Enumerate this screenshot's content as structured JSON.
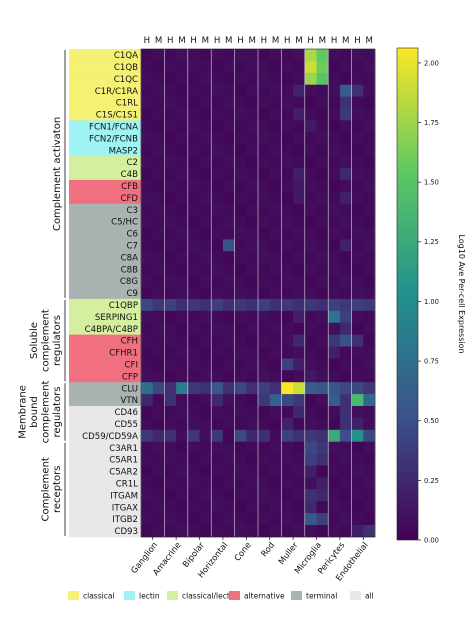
{
  "chart_data": {
    "type": "heatmap",
    "colorbar": {
      "label": "Log10 Ave Per-cell Expression",
      "range": [
        0,
        2.0625
      ],
      "ticks": [
        "0.00",
        "0.25",
        "0.50",
        "0.75",
        "1.00",
        "1.25",
        "1.50",
        "1.75",
        "2.00"
      ],
      "colors": [
        "#440154",
        "#3b528b",
        "#21918c",
        "#5ec962",
        "#fde725"
      ]
    },
    "column_species": [
      "H",
      "M"
    ],
    "cell_types": [
      "Ganglion",
      "Amacrine",
      "Bipolar",
      "Horizontal",
      "Cone",
      "Rod",
      "Muller",
      "Microglia",
      "Pericytes",
      "Endothelial"
    ],
    "genes": [
      "C1QA",
      "C1QB",
      "C1QC",
      "C1R/C1RA",
      "C1RL",
      "C1S/C1S1",
      "FCN1/FCNA",
      "FCN2/FCNB",
      "MASP2",
      "C2",
      "C4B",
      "CFB",
      "CFD",
      "C3",
      "C5/HC",
      "C6",
      "C7",
      "C8A",
      "C8B",
      "C8G",
      "C9",
      "C1QBP",
      "SERPING1",
      "C4BPA/C4BP",
      "CFH",
      "CFHR1",
      "CFI",
      "CFP",
      "CLU",
      "VTN",
      "CD46",
      "CD55",
      "CD59/CD59A",
      "C3AR1",
      "C5AR1",
      "C5AR2",
      "CR1L",
      "ITGAM",
      "ITGAX",
      "ITGB2",
      "CD93"
    ],
    "gene_category": [
      "classical",
      "classical",
      "classical",
      "classical",
      "classical",
      "classical",
      "lectin",
      "lectin",
      "lectin",
      "classical/lectin",
      "classical/lectin",
      "alternative",
      "alternative",
      "terminal",
      "terminal",
      "terminal",
      "terminal",
      "terminal",
      "terminal",
      "terminal",
      "terminal",
      "classical/lectin",
      "classical/lectin",
      "classical/lectin",
      "alternative",
      "alternative",
      "alternative",
      "alternative",
      "terminal",
      "terminal",
      "all",
      "all",
      "all",
      "all",
      "all",
      "all",
      "all",
      "all",
      "all",
      "all",
      "all"
    ],
    "groups": [
      {
        "lines": [
          "Complement activaton"
        ],
        "from": 0,
        "to": 20
      },
      {
        "lines": [
          "Soluble",
          "complement",
          "regulators"
        ],
        "from": 21,
        "to": 27
      },
      {
        "lines": [
          "Membrane",
          "bound",
          "complement",
          "regulators"
        ],
        "from": 28,
        "to": 32
      },
      {
        "lines": [
          "Complement",
          "receptors"
        ],
        "from": 33,
        "to": 40
      }
    ],
    "legend": [
      {
        "label": "classical",
        "color": "#f5f174"
      },
      {
        "label": "lectin",
        "color": "#9ff3f4"
      },
      {
        "label": "classical/lectin",
        "color": "#d5ef9f"
      },
      {
        "label": "alternative",
        "color": "#f07080"
      },
      {
        "label": "terminal",
        "color": "#a9b3b1"
      },
      {
        "label": "all",
        "color": "#e8e8e8"
      }
    ],
    "highlights": [
      {
        "gene": "C1QA",
        "col": 14,
        "value": 1.8
      },
      {
        "gene": "C1QA",
        "col": 15,
        "value": 1.55
      },
      {
        "gene": "C1QB",
        "col": 14,
        "value": 1.9
      },
      {
        "gene": "C1QB",
        "col": 15,
        "value": 1.6
      },
      {
        "gene": "C1QC",
        "col": 14,
        "value": 1.75
      },
      {
        "gene": "C1QC",
        "col": 15,
        "value": 1.5
      },
      {
        "gene": "C1R/C1RA",
        "col": 17,
        "value": 0.6
      },
      {
        "gene": "C1R/C1RA",
        "col": 13,
        "value": 0.22
      },
      {
        "gene": "C1R/C1RA",
        "col": 18,
        "value": 0.3
      },
      {
        "gene": "C1RL",
        "col": 17,
        "value": 0.3
      },
      {
        "gene": "C1S/C1S1",
        "col": 17,
        "value": 0.35
      },
      {
        "gene": "C1S/C1S1",
        "col": 13,
        "value": 0.2
      },
      {
        "gene": "FCN1/FCNA",
        "col": 14,
        "value": 0.15
      },
      {
        "gene": "C4B",
        "col": 13,
        "value": 0.2
      },
      {
        "gene": "C4B",
        "col": 17,
        "value": 0.25
      },
      {
        "gene": "CFB",
        "col": 13,
        "value": 0.15
      },
      {
        "gene": "CFD",
        "col": 17,
        "value": 0.2
      },
      {
        "gene": "CFD",
        "col": 13,
        "value": 0.15
      },
      {
        "gene": "C7",
        "col": 7,
        "value": 0.5
      },
      {
        "gene": "C7",
        "col": 17,
        "value": 0.2
      },
      {
        "gene": "C1QBP",
        "col": 0,
        "value": 0.45
      },
      {
        "gene": "C1QBP",
        "col": 1,
        "value": 0.35
      },
      {
        "gene": "C1QBP",
        "col": 2,
        "value": 0.4
      },
      {
        "gene": "C1QBP",
        "col": 3,
        "value": 0.3
      },
      {
        "gene": "C1QBP",
        "col": 4,
        "value": 0.35
      },
      {
        "gene": "C1QBP",
        "col": 5,
        "value": 0.3
      },
      {
        "gene": "C1QBP",
        "col": 6,
        "value": 0.4
      },
      {
        "gene": "C1QBP",
        "col": 7,
        "value": 0.3
      },
      {
        "gene": "C1QBP",
        "col": 8,
        "value": 0.35
      },
      {
        "gene": "C1QBP",
        "col": 9,
        "value": 0.3
      },
      {
        "gene": "C1QBP",
        "col": 10,
        "value": 0.4
      },
      {
        "gene": "C1QBP",
        "col": 11,
        "value": 0.3
      },
      {
        "gene": "C1QBP",
        "col": 12,
        "value": 0.35
      },
      {
        "gene": "C1QBP",
        "col": 13,
        "value": 0.3
      },
      {
        "gene": "C1QBP",
        "col": 14,
        "value": 0.35
      },
      {
        "gene": "C1QBP",
        "col": 15,
        "value": 0.3
      },
      {
        "gene": "C1QBP",
        "col": 16,
        "value": 0.4
      },
      {
        "gene": "C1QBP",
        "col": 17,
        "value": 0.35
      },
      {
        "gene": "C1QBP",
        "col": 18,
        "value": 0.4
      },
      {
        "gene": "C1QBP",
        "col": 19,
        "value": 0.35
      },
      {
        "gene": "SERPING1",
        "col": 16,
        "value": 0.8
      },
      {
        "gene": "SERPING1",
        "col": 17,
        "value": 0.4
      },
      {
        "gene": "SERPING1",
        "col": 13,
        "value": 0.2
      },
      {
        "gene": "C4BPA/C4BP",
        "col": 17,
        "value": 0.25
      },
      {
        "gene": "CFH",
        "col": 16,
        "value": 0.35
      },
      {
        "gene": "CFH",
        "col": 17,
        "value": 0.5
      },
      {
        "gene": "CFH",
        "col": 18,
        "value": 0.3
      },
      {
        "gene": "CFH",
        "col": 13,
        "value": 0.25
      },
      {
        "gene": "CFHR1",
        "col": 16,
        "value": 0.2
      },
      {
        "gene": "CFI",
        "col": 12,
        "value": 0.4
      },
      {
        "gene": "CFI",
        "col": 13,
        "value": 0.2
      },
      {
        "gene": "CFP",
        "col": 14,
        "value": 0.15
      },
      {
        "gene": "CLU",
        "col": 0,
        "value": 0.75
      },
      {
        "gene": "CLU",
        "col": 1,
        "value": 0.45
      },
      {
        "gene": "CLU",
        "col": 2,
        "value": 0.3
      },
      {
        "gene": "CLU",
        "col": 3,
        "value": 0.85
      },
      {
        "gene": "CLU",
        "col": 4,
        "value": 0.35
      },
      {
        "gene": "CLU",
        "col": 5,
        "value": 0.3
      },
      {
        "gene": "CLU",
        "col": 6,
        "value": 0.55
      },
      {
        "gene": "CLU",
        "col": 7,
        "value": 0.3
      },
      {
        "gene": "CLU",
        "col": 8,
        "value": 0.45
      },
      {
        "gene": "CLU",
        "col": 9,
        "value": 0.3
      },
      {
        "gene": "CLU",
        "col": 10,
        "value": 0.4
      },
      {
        "gene": "CLU",
        "col": 11,
        "value": 0.3
      },
      {
        "gene": "CLU",
        "col": 12,
        "value": 2.05
      },
      {
        "gene": "CLU",
        "col": 13,
        "value": 1.9
      },
      {
        "gene": "CLU",
        "col": 14,
        "value": 0.6
      },
      {
        "gene": "CLU",
        "col": 15,
        "value": 0.55
      },
      {
        "gene": "CLU",
        "col": 16,
        "value": 0.55
      },
      {
        "gene": "CLU",
        "col": 17,
        "value": 0.45
      },
      {
        "gene": "CLU",
        "col": 18,
        "value": 0.45
      },
      {
        "gene": "CLU",
        "col": 19,
        "value": 0.35
      },
      {
        "gene": "VTN",
        "col": 0,
        "value": 0.25
      },
      {
        "gene": "VTN",
        "col": 2,
        "value": 0.3
      },
      {
        "gene": "VTN",
        "col": 6,
        "value": 0.25
      },
      {
        "gene": "VTN",
        "col": 10,
        "value": 0.35
      },
      {
        "gene": "VTN",
        "col": 11,
        "value": 0.65
      },
      {
        "gene": "VTN",
        "col": 12,
        "value": 0.45
      },
      {
        "gene": "VTN",
        "col": 13,
        "value": 0.35
      },
      {
        "gene": "VTN",
        "col": 16,
        "value": 0.6
      },
      {
        "gene": "VTN",
        "col": 17,
        "value": 0.3
      },
      {
        "gene": "VTN",
        "col": 18,
        "value": 1.4
      },
      {
        "gene": "VTN",
        "col": 19,
        "value": 0.7
      },
      {
        "gene": "CD46",
        "col": 13,
        "value": 0.25
      },
      {
        "gene": "CD46",
        "col": 17,
        "value": 0.3
      },
      {
        "gene": "CD55",
        "col": 12,
        "value": 0.2
      },
      {
        "gene": "CD55",
        "col": 17,
        "value": 0.3
      },
      {
        "gene": "CD55",
        "col": 18,
        "value": 0.2
      },
      {
        "gene": "CD59/CD59A",
        "col": 0,
        "value": 0.35
      },
      {
        "gene": "CD59/CD59A",
        "col": 1,
        "value": 0.25
      },
      {
        "gene": "CD59/CD59A",
        "col": 2,
        "value": 0.3
      },
      {
        "gene": "CD59/CD59A",
        "col": 4,
        "value": 0.35
      },
      {
        "gene": "CD59/CD59A",
        "col": 6,
        "value": 0.35
      },
      {
        "gene": "CD59/CD59A",
        "col": 8,
        "value": 0.45
      },
      {
        "gene": "CD59/CD59A",
        "col": 9,
        "value": 0.25
      },
      {
        "gene": "CD59/CD59A",
        "col": 10,
        "value": 0.3
      },
      {
        "gene": "CD59/CD59A",
        "col": 12,
        "value": 0.4
      },
      {
        "gene": "CD59/CD59A",
        "col": 13,
        "value": 0.3
      },
      {
        "gene": "CD59/CD59A",
        "col": 14,
        "value": 0.35
      },
      {
        "gene": "CD59/CD59A",
        "col": 15,
        "value": 0.3
      },
      {
        "gene": "CD59/CD59A",
        "col": 16,
        "value": 1.25
      },
      {
        "gene": "CD59/CD59A",
        "col": 17,
        "value": 0.5
      },
      {
        "gene": "CD59/CD59A",
        "col": 18,
        "value": 1.05
      },
      {
        "gene": "CD59/CD59A",
        "col": 19,
        "value": 0.45
      },
      {
        "gene": "C3AR1",
        "col": 14,
        "value": 0.45
      },
      {
        "gene": "C3AR1",
        "col": 15,
        "value": 0.35
      },
      {
        "gene": "C5AR1",
        "col": 14,
        "value": 0.4
      },
      {
        "gene": "C5AR1",
        "col": 15,
        "value": 0.3
      },
      {
        "gene": "C5AR2",
        "col": 14,
        "value": 0.2
      },
      {
        "gene": "CR1L",
        "col": 15,
        "value": 0.2
      },
      {
        "gene": "ITGAM",
        "col": 14,
        "value": 0.3
      },
      {
        "gene": "ITGAM",
        "col": 15,
        "value": 0.25
      },
      {
        "gene": "ITGAX",
        "col": 14,
        "value": 0.25
      },
      {
        "gene": "ITGB2",
        "col": 14,
        "value": 0.55
      },
      {
        "gene": "ITGB2",
        "col": 15,
        "value": 0.4
      },
      {
        "gene": "CD93",
        "col": 18,
        "value": 0.2
      },
      {
        "gene": "CD93",
        "col": 19,
        "value": 0.3
      }
    ]
  }
}
